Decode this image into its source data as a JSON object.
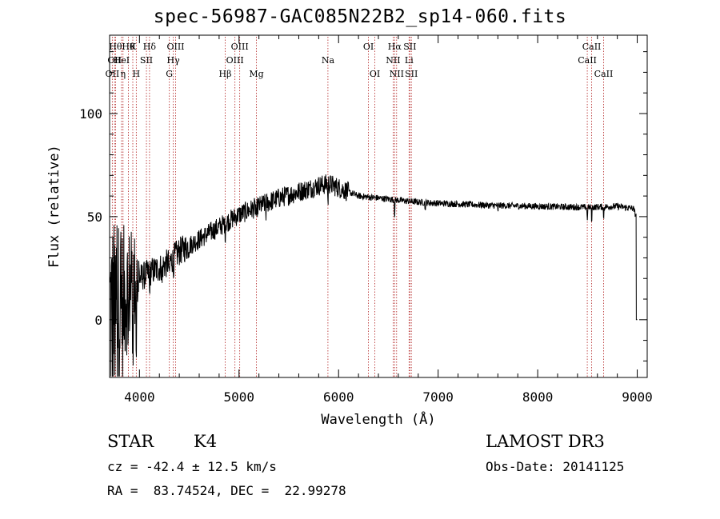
{
  "title": "spec-56987-GAC085N22B2_sp14-060.fits",
  "footer": {
    "class": "STAR",
    "subclass": "K4",
    "survey": "LAMOST DR3",
    "velocity": "cz = -42.4 ± 12.5 km/s",
    "obs_date": "Obs-Date: 20141125",
    "coords": "RA =  83.74524, DEC =  22.99278"
  },
  "colors": {
    "spectrum": "#000000",
    "lines": "#b22222",
    "axes": "#000000"
  },
  "chart_data": {
    "type": "line",
    "title": "spec-56987-GAC085N22B2_sp14-060.fits",
    "xlabel": "Wavelength (Å)",
    "ylabel": "Flux (relative)",
    "xlim": [
      3700,
      9100
    ],
    "ylim": [
      -28,
      138
    ],
    "x_ticks": [
      4000,
      5000,
      6000,
      7000,
      8000,
      9000
    ],
    "x_tick_labels": [
      "4000",
      "5000",
      "6000",
      "7000",
      "8000",
      "9000"
    ],
    "y_ticks": [
      0,
      50,
      100
    ],
    "y_tick_labels": [
      "0",
      "50",
      "100"
    ],
    "grid": false,
    "continuum": [
      [
        3700,
        3
      ],
      [
        3800,
        8
      ],
      [
        3900,
        16
      ],
      [
        4000,
        20
      ],
      [
        4100,
        23
      ],
      [
        4200,
        25
      ],
      [
        4300,
        28
      ],
      [
        4400,
        33
      ],
      [
        4500,
        36
      ],
      [
        4600,
        39
      ],
      [
        4700,
        42
      ],
      [
        4800,
        45
      ],
      [
        4900,
        48
      ],
      [
        5000,
        51
      ],
      [
        5200,
        55
      ],
      [
        5400,
        59
      ],
      [
        5600,
        62
      ],
      [
        5800,
        65
      ],
      [
        5900,
        66
      ],
      [
        6000,
        64
      ],
      [
        6200,
        60
      ],
      [
        6400,
        59
      ],
      [
        6500,
        58.5
      ],
      [
        6600,
        58
      ],
      [
        6800,
        57
      ],
      [
        7000,
        56.5
      ],
      [
        7500,
        55.5
      ],
      [
        8000,
        55
      ],
      [
        8500,
        54.5
      ],
      [
        8800,
        55
      ],
      [
        8960,
        54
      ],
      [
        8990,
        50
      ],
      [
        9000,
        0
      ]
    ],
    "features": [
      {
        "w": 3727,
        "depth": 20
      },
      {
        "w": 3760,
        "depth": 20
      },
      {
        "w": 3835,
        "depth": 30
      },
      {
        "w": 3889,
        "depth": 25
      },
      {
        "w": 3933,
        "depth": 30
      },
      {
        "w": 3968,
        "depth": 30
      },
      {
        "w": 4101,
        "depth": 10
      },
      {
        "w": 4227,
        "depth": 8
      },
      {
        "w": 4300,
        "depth": 10
      },
      {
        "w": 4340,
        "depth": 8
      },
      {
        "w": 4861,
        "depth": 6
      },
      {
        "w": 5175,
        "depth": 8
      },
      {
        "w": 5270,
        "depth": 5
      },
      {
        "w": 5893,
        "depth": 10
      },
      {
        "w": 6563,
        "depth": 8
      },
      {
        "w": 6870,
        "depth": 4
      },
      {
        "w": 7600,
        "depth": 3
      },
      {
        "w": 8498,
        "depth": 6
      },
      {
        "w": 8542,
        "depth": 7
      },
      {
        "w": 8662,
        "depth": 6
      }
    ],
    "lines": [
      {
        "w": 3727,
        "label": "OII",
        "row": 2
      },
      {
        "w": 3750,
        "label": "OII",
        "row": 1
      },
      {
        "w": 3760,
        "label": "Hθ",
        "row": 0
      },
      {
        "w": 3835,
        "label": "η",
        "row": 2
      },
      {
        "w": 3820,
        "label": "HeI",
        "row": 1
      },
      {
        "w": 3889,
        "label": "Hθ",
        "row": 0
      },
      {
        "w": 3933,
        "label": "K",
        "row": 0
      },
      {
        "w": 3968,
        "label": "H",
        "row": 2
      },
      {
        "w": 4070,
        "label": "SII",
        "row": 1
      },
      {
        "w": 4101,
        "label": "Hδ",
        "row": 0
      },
      {
        "w": 4300,
        "label": "G",
        "row": 2
      },
      {
        "w": 4340,
        "label": "Hγ",
        "row": 1
      },
      {
        "w": 4363,
        "label": "OIII",
        "row": 0
      },
      {
        "w": 4861,
        "label": "Hβ",
        "row": 2
      },
      {
        "w": 4959,
        "label": "OIII",
        "row": 1
      },
      {
        "w": 5007,
        "label": "OIII",
        "row": 0
      },
      {
        "w": 5175,
        "label": "Mg",
        "row": 2
      },
      {
        "w": 5893,
        "label": "Na",
        "row": 1
      },
      {
        "w": 6300,
        "label": "OI",
        "row": 0
      },
      {
        "w": 6364,
        "label": "OI",
        "row": 2
      },
      {
        "w": 6548,
        "label": "NII",
        "row": 1
      },
      {
        "w": 6563,
        "label": "Hα",
        "row": 0
      },
      {
        "w": 6583,
        "label": "NII",
        "row": 2
      },
      {
        "w": 6708,
        "label": "Li",
        "row": 1
      },
      {
        "w": 6716,
        "label": "SII",
        "row": 0
      },
      {
        "w": 6731,
        "label": "SII",
        "row": 2
      },
      {
        "w": 8498,
        "label": "CaII",
        "row": 1
      },
      {
        "w": 8542,
        "label": "CaII",
        "row": 0
      },
      {
        "w": 8662,
        "label": "CaII",
        "row": 2
      }
    ]
  }
}
